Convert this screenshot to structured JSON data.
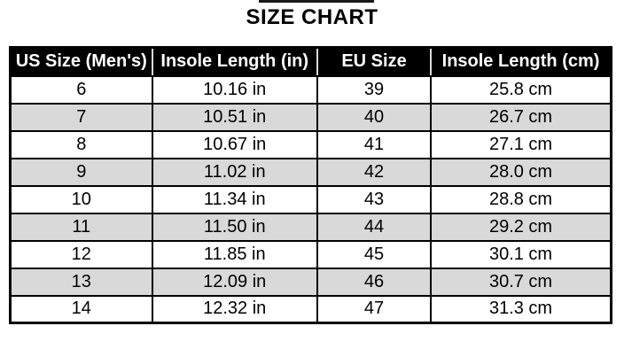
{
  "title": "SIZE CHART",
  "table": {
    "headers": [
      "US Size (Men's)",
      "Insole Length (in)",
      "EU Size",
      "Insole Length (cm)"
    ],
    "rows": [
      [
        "6",
        "10.16 in",
        "39",
        "25.8 cm"
      ],
      [
        "7",
        "10.51 in",
        "40",
        "26.7 cm"
      ],
      [
        "8",
        "10.67 in",
        "41",
        "27.1 cm"
      ],
      [
        "9",
        "11.02 in",
        "42",
        "28.0 cm"
      ],
      [
        "10",
        "11.34 in",
        "43",
        "28.8 cm"
      ],
      [
        "11",
        "11.50 in",
        "44",
        "29.2 cm"
      ],
      [
        "12",
        "11.85 in",
        "45",
        "30.1 cm"
      ],
      [
        "13",
        "12.09 in",
        "46",
        "30.7 cm"
      ],
      [
        "14",
        "12.32 in",
        "47",
        "31.3 cm"
      ]
    ]
  },
  "colors": {
    "header_bg": "#000000",
    "header_text": "#ffffff",
    "row_bg": "#ffffff",
    "alt_row_bg": "#d9d9d9",
    "border": "#000000",
    "title": "#000000"
  }
}
